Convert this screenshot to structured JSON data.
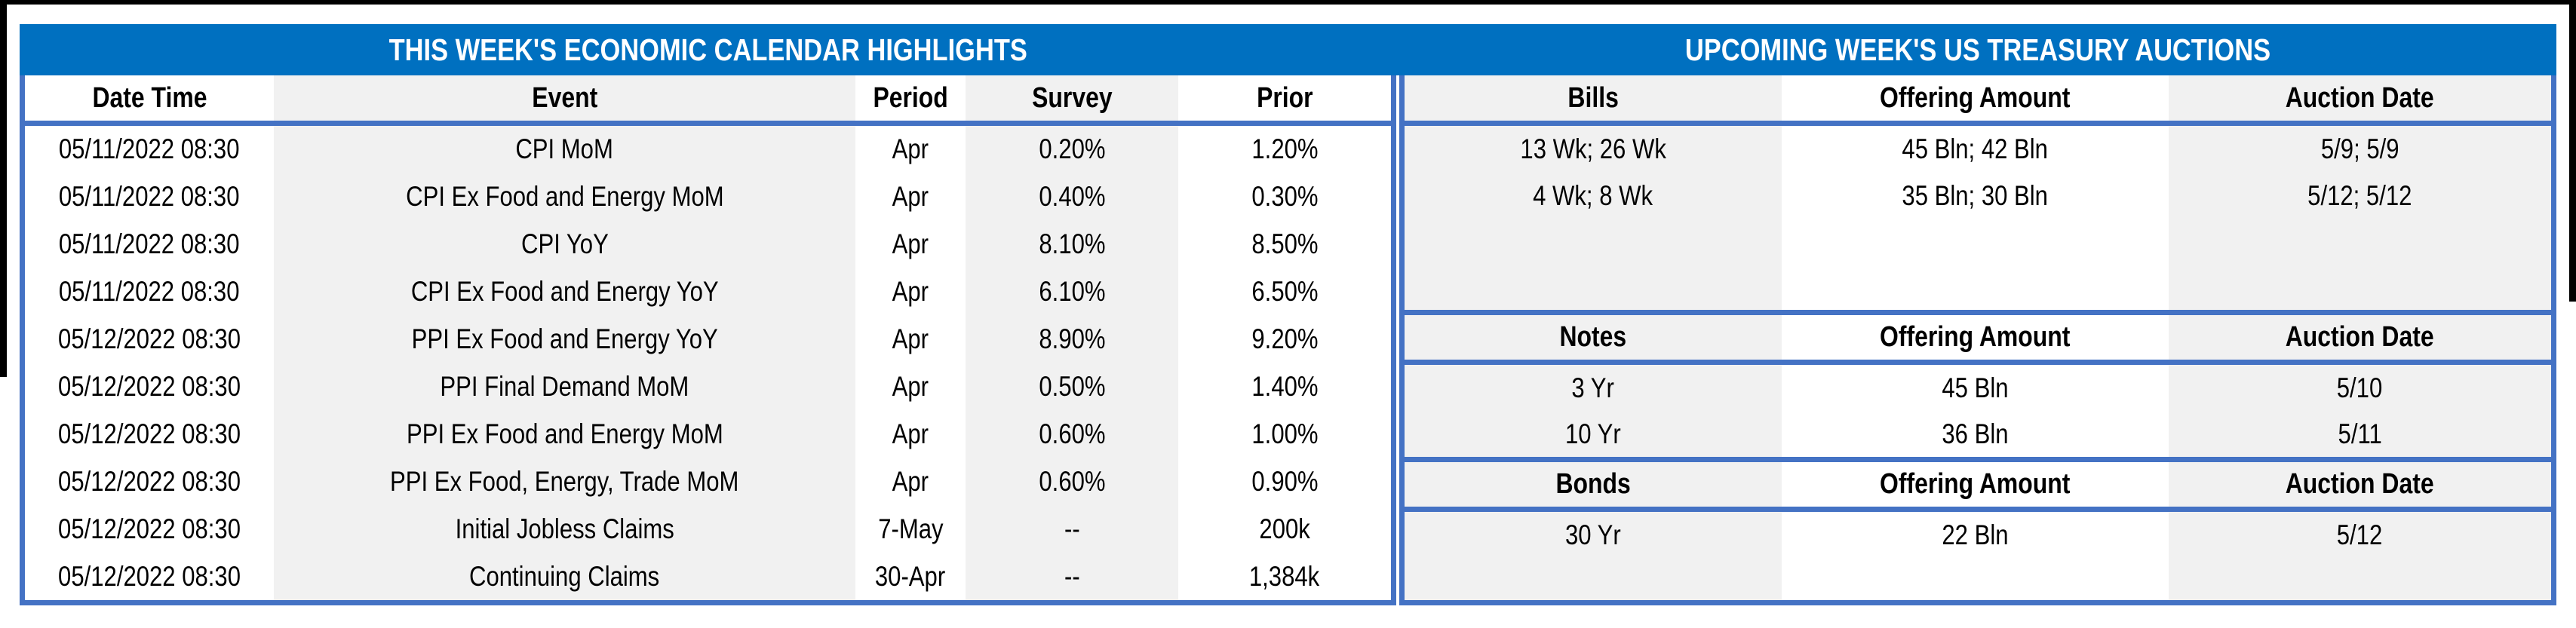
{
  "economic_calendar": {
    "title": "THIS WEEK'S ECONOMIC CALENDAR HIGHLIGHTS",
    "columns": [
      "Date Time",
      "Event",
      "Period",
      "Survey",
      "Prior"
    ],
    "rows": [
      [
        "05/11/2022 08:30",
        "CPI MoM",
        "Apr",
        "0.20%",
        "1.20%"
      ],
      [
        "05/11/2022 08:30",
        "CPI Ex Food and Energy MoM",
        "Apr",
        "0.40%",
        "0.30%"
      ],
      [
        "05/11/2022 08:30",
        "CPI YoY",
        "Apr",
        "8.10%",
        "8.50%"
      ],
      [
        "05/11/2022 08:30",
        "CPI Ex Food and Energy YoY",
        "Apr",
        "6.10%",
        "6.50%"
      ],
      [
        "05/12/2022 08:30",
        "PPI Ex Food and Energy YoY",
        "Apr",
        "8.90%",
        "9.20%"
      ],
      [
        "05/12/2022 08:30",
        "PPI Final Demand MoM",
        "Apr",
        "0.50%",
        "1.40%"
      ],
      [
        "05/12/2022 08:30",
        "PPI Ex Food and Energy MoM",
        "Apr",
        "0.60%",
        "1.00%"
      ],
      [
        "05/12/2022 08:30",
        "PPI Ex Food, Energy, Trade MoM",
        "Apr",
        "0.60%",
        "0.90%"
      ],
      [
        "05/12/2022 08:30",
        "Initial Jobless Claims",
        "7-May",
        "--",
        "200k"
      ],
      [
        "05/12/2022 08:30",
        "Continuing Claims",
        "30-Apr",
        "--",
        "1,384k"
      ]
    ]
  },
  "treasury_auctions": {
    "title": "UPCOMING WEEK'S US TREASURY AUCTIONS",
    "sections": [
      {
        "name": "Bills",
        "columns": [
          "Bills",
          "Offering Amount",
          "Auction Date"
        ],
        "rows": [
          [
            "13 Wk; 26 Wk",
            "45 Bln; 42 Bln",
            "5/9; 5/9"
          ],
          [
            "4 Wk; 8 Wk",
            "35 Bln; 30 Bln",
            "5/12; 5/12"
          ]
        ]
      },
      {
        "name": "Notes",
        "columns": [
          "Notes",
          "Offering Amount",
          "Auction Date"
        ],
        "rows": [
          [
            "3 Yr",
            "45 Bln",
            "5/10"
          ],
          [
            "10 Yr",
            "36 Bln",
            "5/11"
          ]
        ]
      },
      {
        "name": "Bonds",
        "columns": [
          "Bonds",
          "Offering Amount",
          "Auction Date"
        ],
        "rows": [
          [
            "30 Yr",
            "22 Bln",
            "5/12"
          ]
        ]
      }
    ]
  },
  "colors": {
    "header_band": "#0070C0",
    "table_border": "#4472C4",
    "row_band_gray": "#F1F1F1",
    "row_band_white": "#FFFFFF",
    "frame": "#000000",
    "title_text": "#FFFFFF",
    "body_text": "#000000"
  }
}
